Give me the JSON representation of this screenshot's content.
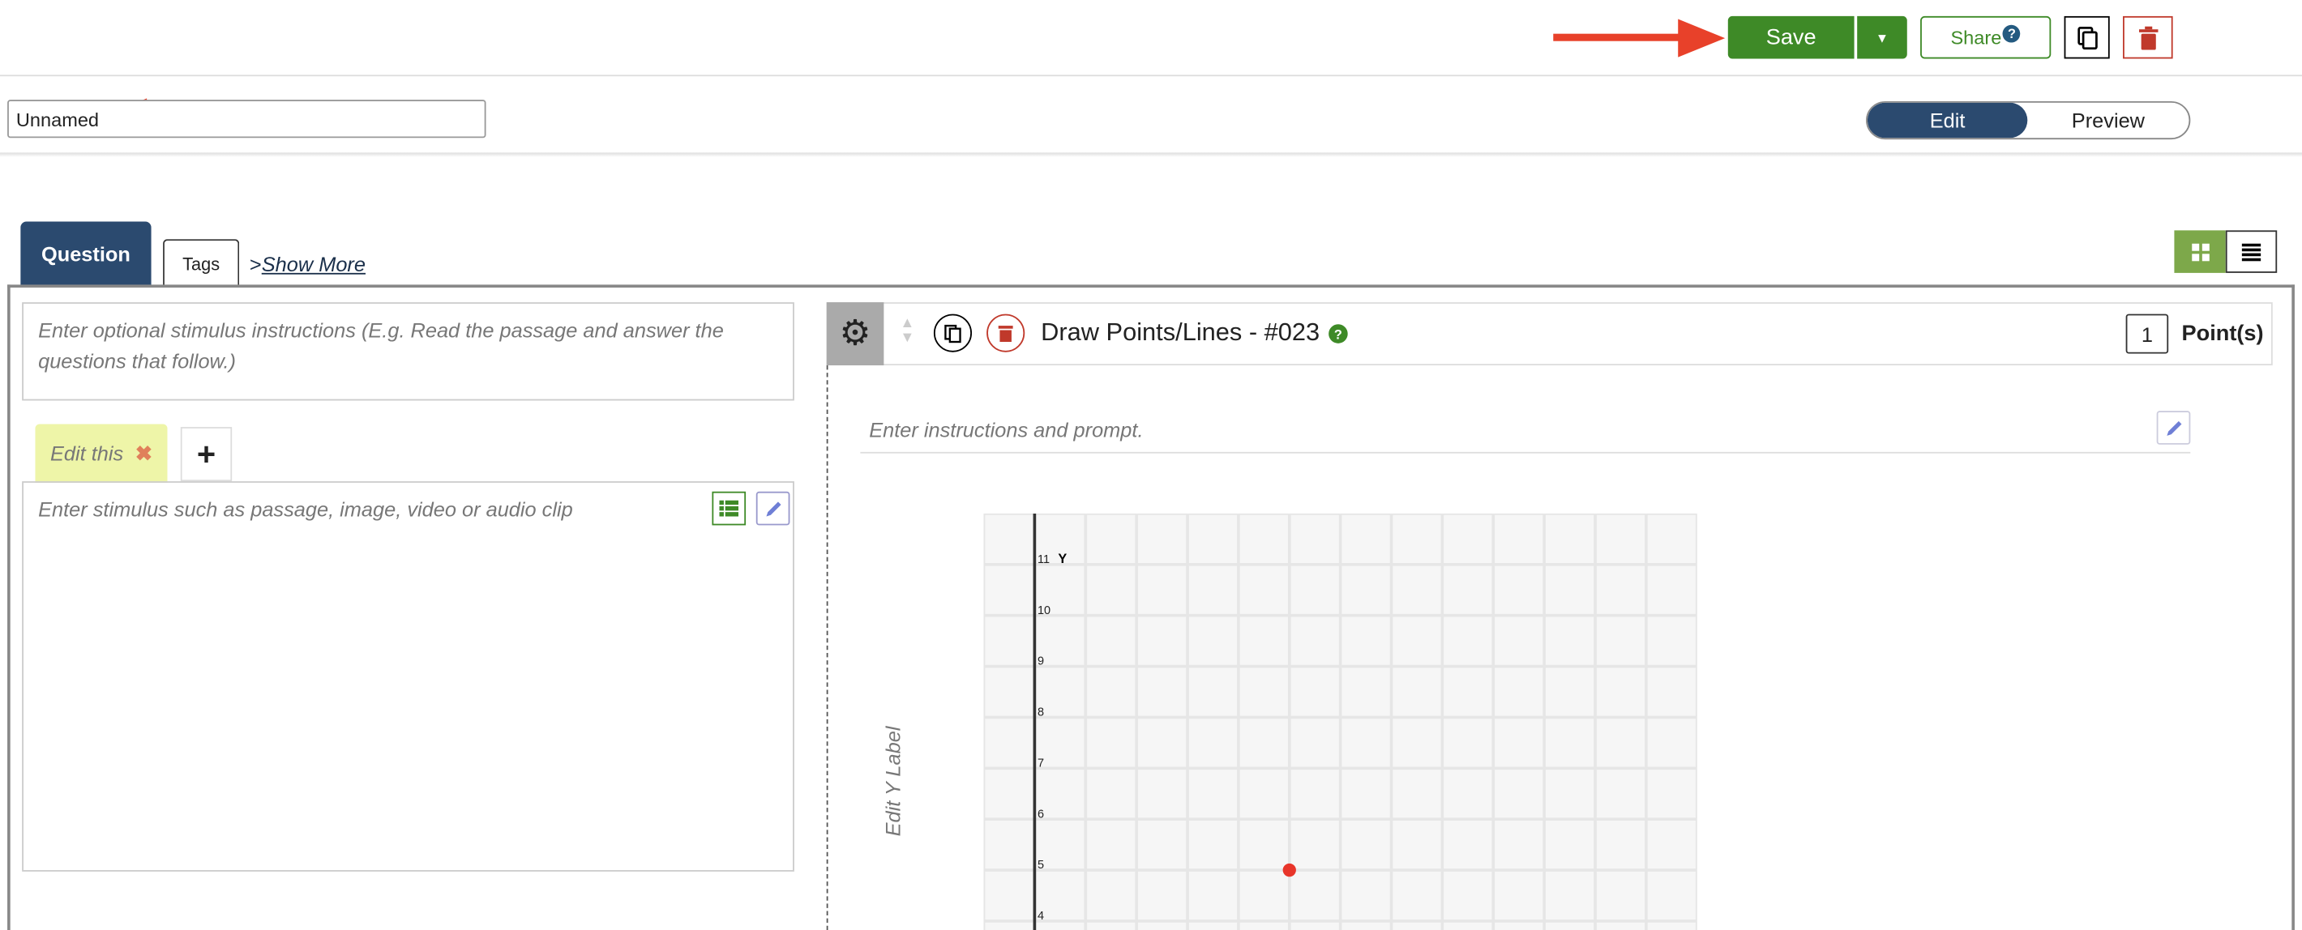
{
  "header": {
    "save_label": "Save",
    "share_label": "Share",
    "share_help": "?",
    "colors": {
      "save": "#3e8a27",
      "delete": "#c0392b",
      "annotation_arrow": "#e8412a"
    }
  },
  "title_input": {
    "value": "Unnamed"
  },
  "mode_toggle": {
    "options": [
      "Edit",
      "Preview"
    ],
    "selected": "Edit",
    "active_color": "#2b4a6f"
  },
  "tabs": [
    {
      "label": "Question",
      "active": true
    },
    {
      "label": "Tags",
      "active": false
    }
  ],
  "show_more": "Show More",
  "view_toggle": {
    "options": [
      "grid-icon",
      "list-icon"
    ],
    "selected": "grid-icon"
  },
  "left": {
    "stimulus_instructions_placeholder": "Enter optional stimulus instructions (E.g. Read the passage and answer the questions that follow.)",
    "stimulus_tab_label": "Edit this",
    "stimulus_placeholder": "Enter stimulus such as passage, image, video or audio clip"
  },
  "question": {
    "title": "Draw Points/Lines - #023",
    "help": "?",
    "points": "1",
    "points_label": "Point(s)",
    "prompt_placeholder": "Enter instructions and prompt.",
    "y_label_placeholder": "Edit Y Label"
  },
  "chart_data": {
    "type": "scatter",
    "xlim": [
      -1,
      13
    ],
    "ylim": [
      3.5,
      12
    ],
    "y_axis_name": "Y",
    "y_ticks": [
      "11",
      "10",
      "9",
      "8",
      "7",
      "6",
      "5",
      "4"
    ],
    "grid": true,
    "points": [
      {
        "x": 5,
        "y": 5,
        "color": "#e8352a"
      }
    ]
  }
}
